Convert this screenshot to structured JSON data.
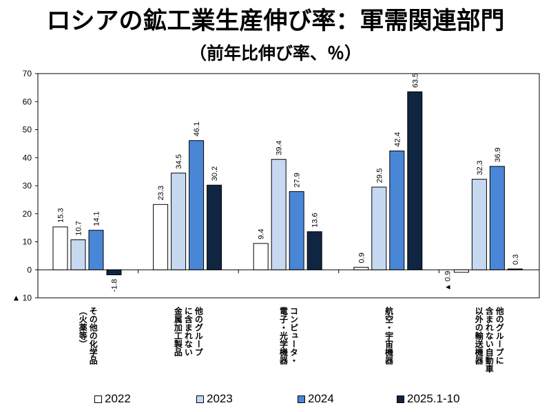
{
  "header": {
    "title": "ロシアの鉱工業生産伸び率：軍需関連部門",
    "subtitle": "（前年比伸び率、％）"
  },
  "chart_data": {
    "type": "bar",
    "title": "ロシアの鉱工業生産伸び率：軍需関連部門",
    "subtitle": "（前年比伸び率、％）",
    "categories": [
      [
        "その他の化学品",
        "（火薬等）"
      ],
      [
        "他のグループ",
        "に含まれない",
        "金属加工製品"
      ],
      [
        "コンピュータ・",
        "電子・光学機器"
      ],
      [
        "航空・宇宙機器"
      ],
      [
        "他のグループに",
        "含まれない自動車",
        "以外の輸送機器"
      ]
    ],
    "series": [
      {
        "name": "2022",
        "color": "#ffffff",
        "values": [
          15.3,
          23.3,
          9.4,
          0.9,
          -0.9
        ]
      },
      {
        "name": "2023",
        "color": "#c6d9f1",
        "values": [
          10.7,
          34.5,
          39.4,
          29.5,
          32.3
        ]
      },
      {
        "name": "2024",
        "color": "#4a86d6",
        "values": [
          14.1,
          46.1,
          27.9,
          42.4,
          36.9
        ]
      },
      {
        "name": "2025.1-10",
        "color": "#0f2542",
        "values": [
          -1.8,
          30.2,
          13.6,
          63.5,
          0.3
        ]
      }
    ],
    "data_labels": [
      [
        "15.3",
        "10.7",
        "14.1",
        "-1.8"
      ],
      [
        "23.3",
        "34.5",
        "46.1",
        "30.2"
      ],
      [
        "9.4",
        "39.4",
        "27.9",
        "13.6"
      ],
      [
        "0.9",
        "29.5",
        "42.4",
        "63.5"
      ],
      [
        "▲ 0.9",
        "32.3",
        "36.9",
        "0.3"
      ]
    ],
    "ylim": [
      -10,
      70
    ],
    "yticks": [
      70,
      60,
      50,
      40,
      30,
      20,
      10,
      0,
      -10
    ],
    "ytick_labels": [
      "70",
      "60",
      "50",
      "40",
      "30",
      "20",
      "10",
      "0",
      "▲ 10"
    ],
    "grid": false,
    "legend_position": "bottom",
    "xlabel": "",
    "ylabel": ""
  }
}
